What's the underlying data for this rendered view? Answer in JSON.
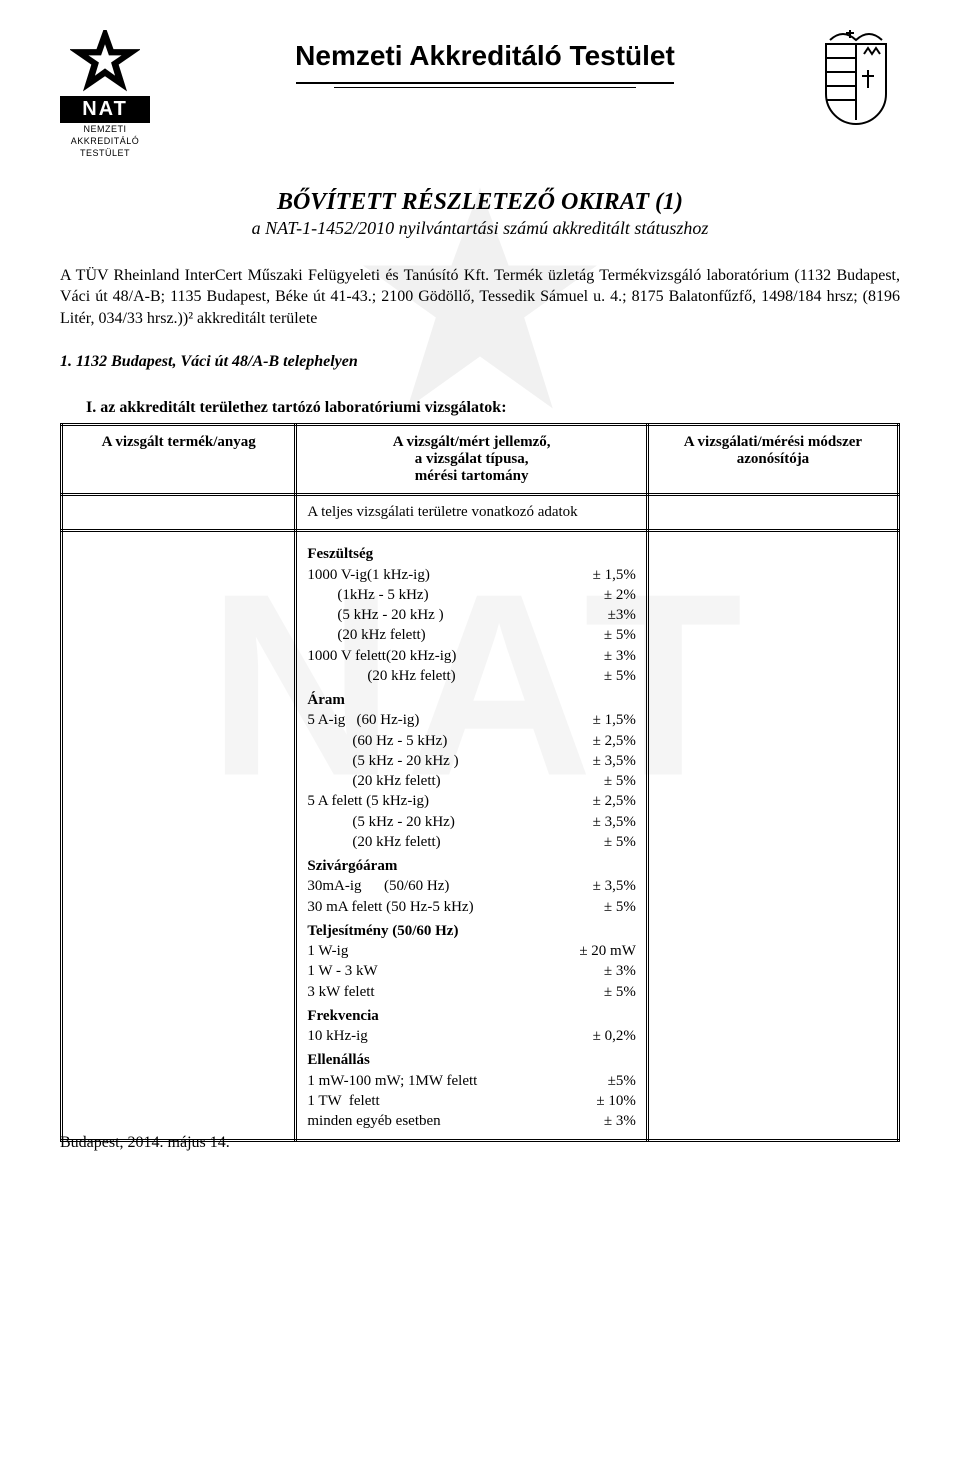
{
  "header": {
    "org_name": "Nemzeti Akkreditáló Testület",
    "logo_left": {
      "nat": "NAT",
      "sub1": "NEMZETI",
      "sub2": "AKKREDITÁLÓ",
      "sub3": "TESTÜLET"
    }
  },
  "doc": {
    "title": "BŐVÍTETT RÉSZLETEZŐ OKIRAT (1)",
    "subtitle": "a NAT-1-1452/2010 nyilvántartási számú akkreditált státuszhoz"
  },
  "body": {
    "paragraph": "A TÜV Rheinland InterCert Műszaki Felügyeleti és Tanúsító Kft. Termék üzletág Termékvizsgáló laboratórium (1132 Budapest, Váci út 48/A-B; 1135 Budapest, Béke út 41-43.; 2100 Gödöllő, Tessedik Sámuel u. 4.; 8175 Balatonfűzfő, 1498/184 hrsz; (8196 Litér, 034/33 hrsz.))² akkreditált területe",
    "site_line": "1. 1132 Budapest, Váci út 48/A-B telephelyen",
    "section_i": "I. az akkreditált területhez tartózó laboratóriumi vizsgálatok:"
  },
  "table": {
    "head": {
      "a": "A vizsgált termék/anyag",
      "b": "A vizsgált/mért jellemző,\na vizsgálat típusa,\nmérési tartomány",
      "c": "A vizsgálati/mérési módszer\nazonósítója"
    },
    "row1_b": "A teljes vizsgálati területre vonatkozó adatok",
    "data": {
      "groups": [
        {
          "title": "Feszültség",
          "lines": [
            {
              "lbl": "1000 V-ig(1 kHz-ig)",
              "val": "± 1,5%"
            },
            {
              "lbl": "        (1kHz - 5 kHz)",
              "val": "± 2%"
            },
            {
              "lbl": "        (5 kHz - 20 kHz )",
              "val": "±3%"
            },
            {
              "lbl": "        (20 kHz felett)",
              "val": "± 5%"
            },
            {
              "lbl": "1000 V felett(20 kHz-ig)",
              "val": "± 3%"
            },
            {
              "lbl": "                (20 kHz felett)",
              "val": "± 5%"
            }
          ]
        },
        {
          "title": "Áram",
          "lines": [
            {
              "lbl": "5 A-ig   (60 Hz-ig)",
              "val": "± 1,5%"
            },
            {
              "lbl": "            (60 Hz - 5 kHz)",
              "val": "± 2,5%"
            },
            {
              "lbl": "            (5 kHz - 20 kHz )",
              "val": "± 3,5%"
            },
            {
              "lbl": "            (20 kHz felett)",
              "val": "± 5%"
            },
            {
              "lbl": "5 A felett (5 kHz-ig)",
              "val": "± 2,5%"
            },
            {
              "lbl": "            (5 kHz - 20 kHz)",
              "val": "± 3,5%"
            },
            {
              "lbl": "            (20 kHz felett)",
              "val": "± 5%"
            }
          ]
        },
        {
          "title": "Szivárgóáram",
          "lines": [
            {
              "lbl": "30mA-ig      (50/60 Hz)",
              "val": "± 3,5%"
            },
            {
              "lbl": "30 mA felett (50 Hz-5 kHz)",
              "val": "± 5%"
            }
          ]
        },
        {
          "title": "Teljesítmény  (50/60 Hz)",
          "lines": [
            {
              "lbl": "1 W-ig",
              "val": "± 20 mW"
            },
            {
              "lbl": "1 W - 3 kW",
              "val": "± 3%"
            },
            {
              "lbl": "3 kW felett",
              "val": "± 5%"
            }
          ]
        },
        {
          "title": "Frekvencia",
          "lines": [
            {
              "lbl": "10 kHz-ig",
              "val": "± 0,2%"
            }
          ]
        },
        {
          "title": "Ellenállás",
          "lines": [
            {
              "lbl": "1 mW-100 mW; 1MW felett",
              "val": "±5%"
            },
            {
              "lbl": "1 TW  felett",
              "val": "± 10%"
            },
            {
              "lbl": "minden egyéb esetben",
              "val": "± 3%"
            }
          ]
        }
      ]
    }
  },
  "footer": {
    "date": "Budapest, 2014. május 14."
  },
  "colors": {
    "text": "#000000",
    "background": "#ffffff",
    "watermark": "rgba(0,0,0,0.04)"
  }
}
